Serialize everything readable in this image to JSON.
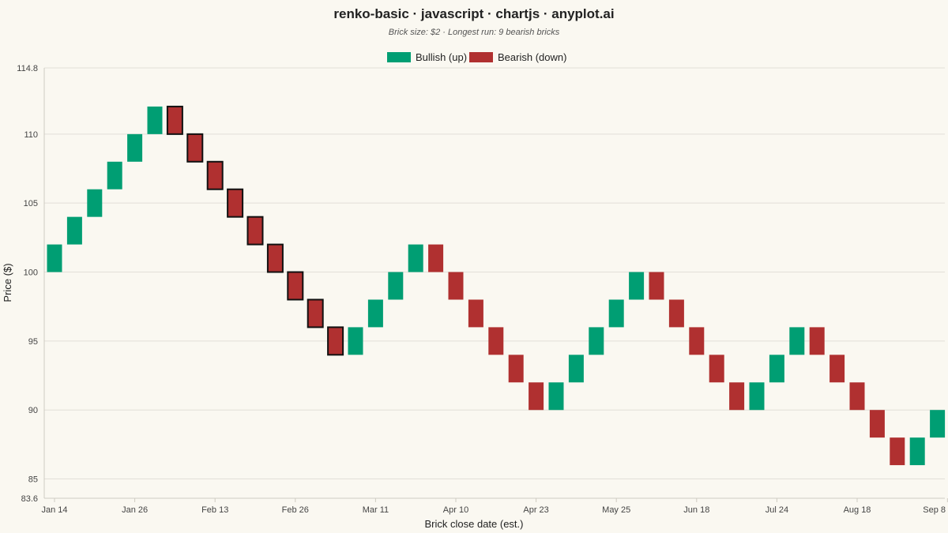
{
  "chart_data": {
    "type": "renko",
    "title": "renko-basic · javascript · chartjs · anyplot.ai",
    "subtitle": "Brick size: $2 · Longest run: 9 bearish bricks",
    "xlabel": "Brick close date (est.)",
    "ylabel": "Price ($)",
    "ylim": [
      83.6,
      114.8
    ],
    "y_ticks": [
      "83.6",
      "85",
      "90",
      "95",
      "100",
      "105",
      "110",
      "114.8"
    ],
    "y_tick_values": [
      83.6,
      85,
      90,
      95,
      100,
      105,
      110,
      114.8
    ],
    "x_ticks": [
      "Jan 14",
      "Jan 26",
      "Feb 13",
      "Feb 26",
      "Mar 11",
      "Apr 10",
      "Apr 23",
      "May 25",
      "Jun 18",
      "Jul 24",
      "Aug 18",
      "Sep 8"
    ],
    "x_tick_brick_index": [
      0,
      4,
      8,
      12,
      16,
      20,
      24,
      28,
      32,
      36,
      40,
      44.5
    ],
    "brick_size": 2,
    "legend": {
      "position": "top",
      "entries": [
        {
          "label": "Bullish (up)",
          "color": "#009E73"
        },
        {
          "label": "Bearish (down)",
          "color": "#B03030"
        }
      ]
    },
    "colors": {
      "bullish": "#009E73",
      "bearish": "#B03030",
      "longest_run_outline": "#111111"
    },
    "grid": true,
    "bricks": [
      {
        "low": 100,
        "high": 102,
        "direction": "up"
      },
      {
        "low": 102,
        "high": 104,
        "direction": "up"
      },
      {
        "low": 104,
        "high": 106,
        "direction": "up"
      },
      {
        "low": 106,
        "high": 108,
        "direction": "up"
      },
      {
        "low": 108,
        "high": 110,
        "direction": "up"
      },
      {
        "low": 110,
        "high": 112,
        "direction": "up"
      },
      {
        "low": 110,
        "high": 112,
        "direction": "down",
        "longest_run": true
      },
      {
        "low": 108,
        "high": 110,
        "direction": "down",
        "longest_run": true
      },
      {
        "low": 106,
        "high": 108,
        "direction": "down",
        "longest_run": true
      },
      {
        "low": 104,
        "high": 106,
        "direction": "down",
        "longest_run": true
      },
      {
        "low": 102,
        "high": 104,
        "direction": "down",
        "longest_run": true
      },
      {
        "low": 100,
        "high": 102,
        "direction": "down",
        "longest_run": true
      },
      {
        "low": 98,
        "high": 100,
        "direction": "down",
        "longest_run": true
      },
      {
        "low": 96,
        "high": 98,
        "direction": "down",
        "longest_run": true
      },
      {
        "low": 94,
        "high": 96,
        "direction": "down",
        "longest_run": true
      },
      {
        "low": 94,
        "high": 96,
        "direction": "up"
      },
      {
        "low": 96,
        "high": 98,
        "direction": "up"
      },
      {
        "low": 98,
        "high": 100,
        "direction": "up"
      },
      {
        "low": 100,
        "high": 102,
        "direction": "up"
      },
      {
        "low": 100,
        "high": 102,
        "direction": "down"
      },
      {
        "low": 98,
        "high": 100,
        "direction": "down"
      },
      {
        "low": 96,
        "high": 98,
        "direction": "down"
      },
      {
        "low": 94,
        "high": 96,
        "direction": "down"
      },
      {
        "low": 92,
        "high": 94,
        "direction": "down"
      },
      {
        "low": 90,
        "high": 92,
        "direction": "down"
      },
      {
        "low": 90,
        "high": 92,
        "direction": "up"
      },
      {
        "low": 92,
        "high": 94,
        "direction": "up"
      },
      {
        "low": 94,
        "high": 96,
        "direction": "up"
      },
      {
        "low": 96,
        "high": 98,
        "direction": "up"
      },
      {
        "low": 98,
        "high": 100,
        "direction": "up"
      },
      {
        "low": 98,
        "high": 100,
        "direction": "down"
      },
      {
        "low": 96,
        "high": 98,
        "direction": "down"
      },
      {
        "low": 94,
        "high": 96,
        "direction": "down"
      },
      {
        "low": 92,
        "high": 94,
        "direction": "down"
      },
      {
        "low": 90,
        "high": 92,
        "direction": "down"
      },
      {
        "low": 90,
        "high": 92,
        "direction": "up"
      },
      {
        "low": 92,
        "high": 94,
        "direction": "up"
      },
      {
        "low": 94,
        "high": 96,
        "direction": "up"
      },
      {
        "low": 94,
        "high": 96,
        "direction": "down"
      },
      {
        "low": 92,
        "high": 94,
        "direction": "down"
      },
      {
        "low": 90,
        "high": 92,
        "direction": "down"
      },
      {
        "low": 88,
        "high": 90,
        "direction": "down"
      },
      {
        "low": 86,
        "high": 88,
        "direction": "down"
      },
      {
        "low": 86,
        "high": 88,
        "direction": "up"
      },
      {
        "low": 88,
        "high": 90,
        "direction": "up"
      }
    ]
  }
}
